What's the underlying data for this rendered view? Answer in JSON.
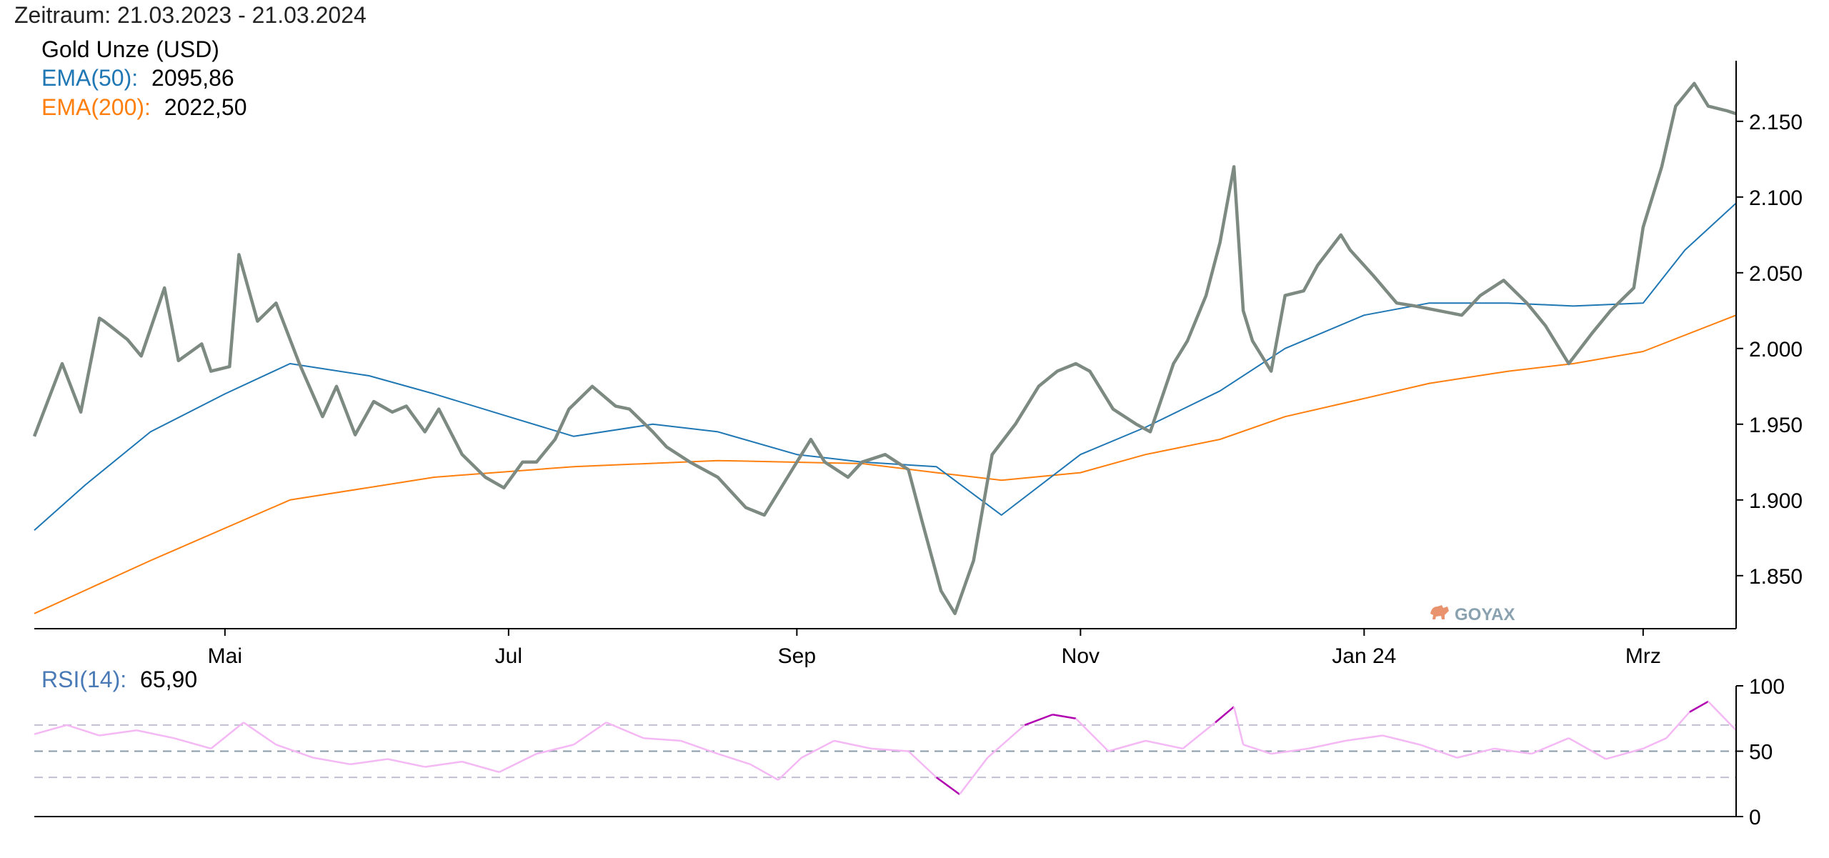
{
  "header": {
    "period_label": "Zeitraum: 21.03.2023 - 21.03.2024"
  },
  "legend": {
    "instrument": "Gold Unze (USD)",
    "ema50_label": "EMA(50):",
    "ema50_value": "2095,86",
    "ema200_label": "EMA(200):",
    "ema200_value": "2022,50",
    "rsi_label": "RSI(14):",
    "rsi_value": "65,90"
  },
  "watermark": {
    "text": "GOYAX"
  },
  "colors": {
    "price": "#7d8a82",
    "ema50": "#1f77b4",
    "ema200": "#ff7f0e",
    "rsi_normal": "#f4b8f4",
    "rsi_extreme": "#b000b0",
    "ref_line": "#c0c0d0",
    "mid_line": "#8a9aaa",
    "text": "#000000"
  },
  "chart_data": [
    {
      "type": "line",
      "x_ticks": [
        "Mai",
        "Jul",
        "Sep",
        "Nov",
        "Jan 24",
        "Mrz"
      ],
      "x_tick_dates": [
        "2023-05-01",
        "2023-07-01",
        "2023-09-01",
        "2023-11-01",
        "2024-01-01",
        "2024-03-01"
      ],
      "y_ticks": [
        "1.850",
        "1.900",
        "1.950",
        "2.000",
        "2.050",
        "2.100",
        "2.150"
      ],
      "ylim": [
        1815,
        2190
      ],
      "xlim": [
        "2023-03-21",
        "2024-03-21"
      ],
      "series": [
        {
          "name": "Gold Unze (USD)",
          "x": [
            "2023-03-21",
            "2023-03-27",
            "2023-03-31",
            "2023-04-04",
            "2023-04-05",
            "2023-04-10",
            "2023-04-13",
            "2023-04-18",
            "2023-04-21",
            "2023-04-26",
            "2023-04-28",
            "2023-05-02",
            "2023-05-04",
            "2023-05-08",
            "2023-05-12",
            "2023-05-17",
            "2023-05-22",
            "2023-05-25",
            "2023-05-29",
            "2023-06-02",
            "2023-06-06",
            "2023-06-09",
            "2023-06-13",
            "2023-06-16",
            "2023-06-21",
            "2023-06-26",
            "2023-06-30",
            "2023-07-04",
            "2023-07-07",
            "2023-07-11",
            "2023-07-14",
            "2023-07-19",
            "2023-07-24",
            "2023-07-27",
            "2023-08-01",
            "2023-08-04",
            "2023-08-09",
            "2023-08-15",
            "2023-08-21",
            "2023-08-25",
            "2023-08-30",
            "2023-09-04",
            "2023-09-07",
            "2023-09-12",
            "2023-09-15",
            "2023-09-20",
            "2023-09-25",
            "2023-09-28",
            "2023-10-02",
            "2023-10-05",
            "2023-10-09",
            "2023-10-13",
            "2023-10-18",
            "2023-10-23",
            "2023-10-27",
            "2023-10-31",
            "2023-11-03",
            "2023-11-08",
            "2023-11-13",
            "2023-11-16",
            "2023-11-21",
            "2023-11-24",
            "2023-11-28",
            "2023-12-01",
            "2023-12-04",
            "2023-12-06",
            "2023-12-08",
            "2023-12-12",
            "2023-12-15",
            "2023-12-19",
            "2023-12-22",
            "2023-12-27",
            "2023-12-29",
            "2024-01-03",
            "2024-01-08",
            "2024-01-12",
            "2024-01-17",
            "2024-01-22",
            "2024-01-26",
            "2024-01-31",
            "2024-02-05",
            "2024-02-09",
            "2024-02-14",
            "2024-02-19",
            "2024-02-23",
            "2024-02-28",
            "2024-03-01",
            "2024-03-05",
            "2024-03-08",
            "2024-03-12",
            "2024-03-15",
            "2024-03-19",
            "2024-03-21"
          ],
          "values": [
            1942,
            1990,
            1958,
            2020,
            2018,
            2006,
            1995,
            2040,
            1992,
            2003,
            1985,
            1988,
            2062,
            2018,
            2030,
            1990,
            1955,
            1975,
            1943,
            1965,
            1958,
            1962,
            1945,
            1960,
            1930,
            1915,
            1908,
            1925,
            1925,
            1940,
            1960,
            1975,
            1962,
            1960,
            1945,
            1935,
            1925,
            1915,
            1895,
            1890,
            1915,
            1940,
            1925,
            1915,
            1925,
            1930,
            1920,
            1885,
            1840,
            1825,
            1860,
            1930,
            1950,
            1975,
            1985,
            1990,
            1985,
            1960,
            1950,
            1945,
            1990,
            2005,
            2035,
            2070,
            2120,
            2025,
            2005,
            1985,
            2035,
            2038,
            2055,
            2075,
            2065,
            2048,
            2030,
            2028,
            2025,
            2022,
            2035,
            2045,
            2030,
            2015,
            1990,
            2010,
            2025,
            2040,
            2080,
            2120,
            2160,
            2175,
            2160,
            2157,
            2155
          ]
        },
        {
          "name": "EMA(50)",
          "x": [
            "2023-03-21",
            "2023-04-01",
            "2023-04-15",
            "2023-05-01",
            "2023-05-15",
            "2023-06-01",
            "2023-06-15",
            "2023-07-01",
            "2023-07-15",
            "2023-08-01",
            "2023-08-15",
            "2023-09-01",
            "2023-09-15",
            "2023-10-01",
            "2023-10-15",
            "2023-11-01",
            "2023-11-15",
            "2023-12-01",
            "2023-12-15",
            "2024-01-01",
            "2024-01-15",
            "2024-02-01",
            "2024-02-15",
            "2024-03-01",
            "2024-03-10",
            "2024-03-21"
          ],
          "values": [
            1880,
            1910,
            1945,
            1970,
            1990,
            1982,
            1970,
            1955,
            1942,
            1950,
            1945,
            1930,
            1925,
            1922,
            1890,
            1930,
            1948,
            1972,
            2000,
            2022,
            2030,
            2030,
            2028,
            2030,
            2065,
            2096
          ]
        },
        {
          "name": "EMA(200)",
          "x": [
            "2023-03-21",
            "2023-04-15",
            "2023-05-15",
            "2023-06-15",
            "2023-07-15",
            "2023-08-15",
            "2023-09-15",
            "2023-10-01",
            "2023-10-15",
            "2023-11-01",
            "2023-11-15",
            "2023-12-01",
            "2023-12-15",
            "2024-01-01",
            "2024-01-15",
            "2024-02-01",
            "2024-02-15",
            "2024-03-01",
            "2024-03-21"
          ],
          "values": [
            1825,
            1860,
            1900,
            1915,
            1922,
            1926,
            1924,
            1918,
            1913,
            1918,
            1930,
            1940,
            1955,
            1967,
            1977,
            1985,
            1990,
            1998,
            2022
          ]
        }
      ]
    },
    {
      "type": "line",
      "y_ticks": [
        "0",
        "50",
        "100"
      ],
      "ylim": [
        0,
        100
      ],
      "xlim": [
        "2023-03-21",
        "2024-03-21"
      ],
      "reference_lines": [
        30,
        50,
        70
      ],
      "series": [
        {
          "name": "RSI(14)",
          "x": [
            "2023-03-21",
            "2023-03-28",
            "2023-04-04",
            "2023-04-12",
            "2023-04-20",
            "2023-04-28",
            "2023-05-05",
            "2023-05-12",
            "2023-05-20",
            "2023-05-28",
            "2023-06-05",
            "2023-06-13",
            "2023-06-21",
            "2023-06-29",
            "2023-07-07",
            "2023-07-15",
            "2023-07-22",
            "2023-07-30",
            "2023-08-07",
            "2023-08-15",
            "2023-08-22",
            "2023-08-28",
            "2023-09-02",
            "2023-09-09",
            "2023-09-17",
            "2023-09-25",
            "2023-10-01",
            "2023-10-06",
            "2023-10-12",
            "2023-10-20",
            "2023-10-26",
            "2023-10-31",
            "2023-11-07",
            "2023-11-15",
            "2023-11-23",
            "2023-11-30",
            "2023-12-04",
            "2023-12-06",
            "2023-12-12",
            "2023-12-20",
            "2023-12-28",
            "2024-01-05",
            "2024-01-13",
            "2024-01-21",
            "2024-01-29",
            "2024-02-06",
            "2024-02-14",
            "2024-02-22",
            "2024-03-01",
            "2024-03-06",
            "2024-03-11",
            "2024-03-15",
            "2024-03-21"
          ],
          "values": [
            63,
            70,
            62,
            66,
            60,
            52,
            72,
            55,
            45,
            40,
            44,
            38,
            42,
            34,
            48,
            55,
            72,
            60,
            58,
            48,
            40,
            28,
            45,
            58,
            52,
            50,
            30,
            17,
            45,
            70,
            78,
            75,
            50,
            58,
            52,
            72,
            84,
            55,
            48,
            52,
            58,
            62,
            55,
            45,
            52,
            48,
            60,
            44,
            52,
            60,
            80,
            88,
            66
          ]
        }
      ]
    }
  ]
}
